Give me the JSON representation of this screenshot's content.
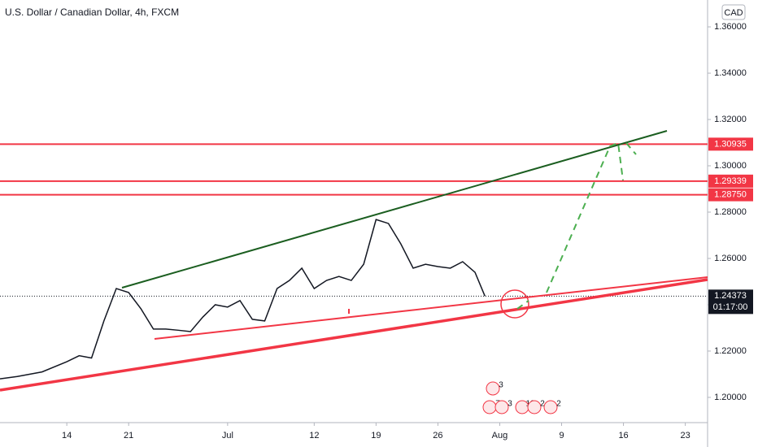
{
  "chart_data": {
    "type": "line",
    "title": "U.S. Dollar / Canadian Dollar, 4h, FXCM",
    "currency": "CAD",
    "x": [
      -5.4,
      -4,
      -2,
      0,
      1,
      2,
      3,
      4,
      5,
      6,
      7,
      8,
      9,
      10,
      11,
      12,
      13,
      14,
      15,
      16,
      17,
      18,
      19,
      20,
      21,
      22,
      23,
      24,
      25,
      26,
      27,
      28,
      29,
      30,
      31,
      32,
      33,
      33.8
    ],
    "series": [
      {
        "name": "USDCAD",
        "color": "#131722",
        "values": [
          1.208,
          1.209,
          1.211,
          1.2154,
          1.218,
          1.217,
          1.233,
          1.247,
          1.2453,
          1.2382,
          1.2295,
          1.2295,
          1.229,
          1.2284,
          1.2347,
          1.24,
          1.239,
          1.2418,
          1.2337,
          1.233,
          1.247,
          1.2505,
          1.2558,
          1.247,
          1.2505,
          1.2522,
          1.2505,
          1.2575,
          1.2768,
          1.2751,
          1.2663,
          1.2558,
          1.2575,
          1.2565,
          1.2558,
          1.2586,
          1.254,
          1.24373
        ]
      }
    ],
    "xlim": [
      -5.4,
      51.8
    ],
    "xticks": [
      {
        "value": 0,
        "label": "14"
      },
      {
        "value": 5,
        "label": "21"
      },
      {
        "value": 13,
        "label": "Jul"
      },
      {
        "value": 20,
        "label": "12"
      },
      {
        "value": 25,
        "label": "19"
      },
      {
        "value": 30,
        "label": "26"
      },
      {
        "value": 35,
        "label": "Aug"
      },
      {
        "value": 40,
        "label": "9"
      },
      {
        "value": 45,
        "label": "16"
      },
      {
        "value": 50,
        "label": "23"
      }
    ],
    "ylim": [
      1.1891,
      1.3716
    ],
    "yticks": [
      {
        "value": 1.36,
        "label": "1.36000"
      },
      {
        "value": 1.34,
        "label": "1.34000"
      },
      {
        "value": 1.32,
        "label": "1.32000"
      },
      {
        "value": 1.3,
        "label": "1.30000"
      },
      {
        "value": 1.28,
        "label": "1.28000"
      },
      {
        "value": 1.26,
        "label": "1.26000"
      },
      {
        "value": 1.24,
        "label": "1.24000"
      },
      {
        "value": 1.22,
        "label": "1.22000"
      },
      {
        "value": 1.2,
        "label": "1.20000"
      }
    ],
    "levels": [
      {
        "value": 1.30935,
        "label": "1.30935"
      },
      {
        "value": 1.29339,
        "label": "1.29339"
      },
      {
        "value": 1.2875,
        "label": "1.28750"
      }
    ],
    "level_color": "#f23645",
    "last_price": {
      "value": 1.24373,
      "label": "1.24373"
    },
    "countdown": "01:17:00",
    "events": [
      3,
      7,
      3,
      12,
      2,
      2
    ]
  }
}
